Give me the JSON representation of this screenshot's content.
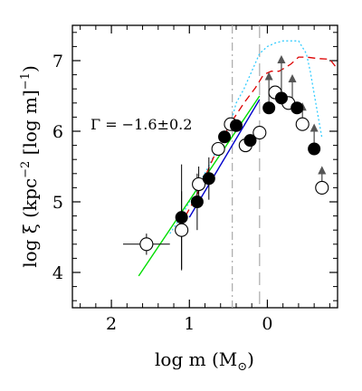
{
  "chart_data": {
    "type": "scatter",
    "xlabel": "log m (M⊙)",
    "xlabel_parts": {
      "main": "log m (M",
      "sub": "⊙",
      "close": ")"
    },
    "ylabel": "log ξ (kpc⁻² [log m]⁻¹)",
    "ylabel_parts": {
      "p1": "log ξ (kpc",
      "sup1": "−2",
      "p2": " [log m]",
      "sup2": "−1",
      "p3": ")"
    },
    "x_reversed": true,
    "xlim": [
      2.5,
      -0.9
    ],
    "ylim": [
      3.5,
      7.5
    ],
    "x_ticks": [
      2,
      1,
      0
    ],
    "y_ticks": [
      4,
      5,
      6,
      7
    ],
    "annotation": "Γ = −1.6±0.2",
    "vertical_lines": [
      {
        "x": 0.45,
        "style": "dash-dot"
      },
      {
        "x": 0.1,
        "style": "long-dash"
      }
    ],
    "fit_lines": [
      {
        "color": "#0000cc",
        "x": [
          1.0,
          0.1
        ],
        "y": [
          4.78,
          6.45
        ]
      },
      {
        "color": "#00dd00",
        "x": [
          1.65,
          0.1
        ],
        "y": [
          3.95,
          6.5
        ]
      }
    ],
    "open_points": [
      {
        "x": 1.55,
        "y": 4.4,
        "xerr": 0.3,
        "yerr": 0.15
      },
      {
        "x": 1.1,
        "y": 4.6,
        "xerr": 0,
        "yerr": 0.55
      },
      {
        "x": 0.88,
        "y": 5.25,
        "xerr": 0,
        "yerr": 0.25
      },
      {
        "x": 0.63,
        "y": 5.75,
        "xerr": 0,
        "yerr": 0
      },
      {
        "x": 0.47,
        "y": 6.1,
        "xerr": 0,
        "yerr": 0
      },
      {
        "x": 0.28,
        "y": 5.8,
        "xerr": 0,
        "yerr": 0
      },
      {
        "x": 0.1,
        "y": 5.98,
        "xerr": 0,
        "yerr": 0
      },
      {
        "x": -0.1,
        "y": 6.55,
        "xerr": 0,
        "yerr": 0
      },
      {
        "x": -0.27,
        "y": 6.4,
        "xerr": 0,
        "yerr": 0
      },
      {
        "x": -0.45,
        "y": 6.1,
        "xerr": 0,
        "yerr": 0
      },
      {
        "x": -0.7,
        "y": 5.2,
        "xerr": 0,
        "yerr": 0
      }
    ],
    "filled_points": [
      {
        "x": 1.1,
        "y": 4.78,
        "yerr": 0.75
      },
      {
        "x": 0.9,
        "y": 5.0,
        "yerr": 0.4
      },
      {
        "x": 0.75,
        "y": 5.33,
        "yerr": 0.3
      },
      {
        "x": 0.55,
        "y": 5.92,
        "yerr": 0
      },
      {
        "x": 0.4,
        "y": 6.08,
        "yerr": 0
      },
      {
        "x": 0.22,
        "y": 5.87,
        "yerr": 0
      },
      {
        "x": -0.02,
        "y": 6.33,
        "yerr": 0
      },
      {
        "x": -0.18,
        "y": 6.47,
        "yerr": 0
      },
      {
        "x": -0.38,
        "y": 6.33,
        "yerr": 0
      },
      {
        "x": -0.6,
        "y": 5.75,
        "yerr": 0
      }
    ],
    "lower_limit_arrows": [
      {
        "x": -0.02,
        "y": 6.33,
        "length": 0.45
      },
      {
        "x": -0.18,
        "y": 6.47,
        "length": 0.55
      },
      {
        "x": -0.32,
        "y": 6.4,
        "length": 0.35
      },
      {
        "x": -0.45,
        "y": 6.1,
        "length": 0.25
      },
      {
        "x": -0.6,
        "y": 5.75,
        "length": 0.3
      },
      {
        "x": -0.7,
        "y": 5.2,
        "length": 0.25
      }
    ],
    "red_dashed_curve": {
      "color": "#dd0000",
      "x": [
        1.05,
        0.95,
        0.85,
        0.75,
        0.6,
        0.45,
        0.3,
        0.15,
        0.05,
        -0.05,
        -0.15,
        -0.3,
        -0.4,
        -0.5,
        -0.65,
        -0.8,
        -0.9
      ],
      "y": [
        4.8,
        5.0,
        5.22,
        5.48,
        5.85,
        6.15,
        6.4,
        6.62,
        6.8,
        6.85,
        6.85,
        6.95,
        7.05,
        7.05,
        7.03,
        7.02,
        6.88
      ]
    },
    "cyan_dotted_curve": {
      "color": "#33ccff",
      "x": [
        1.25,
        1.1,
        0.95,
        0.85,
        0.7,
        0.55,
        0.45,
        0.4,
        0.3,
        0.2,
        0.1,
        0.0,
        -0.1,
        -0.2,
        -0.3,
        -0.4,
        -0.5,
        -0.55,
        -0.62,
        -0.7
      ],
      "y": [
        4.55,
        4.8,
        5.1,
        5.3,
        5.62,
        5.95,
        6.2,
        6.4,
        6.6,
        6.85,
        7.1,
        7.2,
        7.25,
        7.28,
        7.28,
        7.28,
        7.1,
        6.85,
        6.4,
        5.9
      ]
    }
  }
}
